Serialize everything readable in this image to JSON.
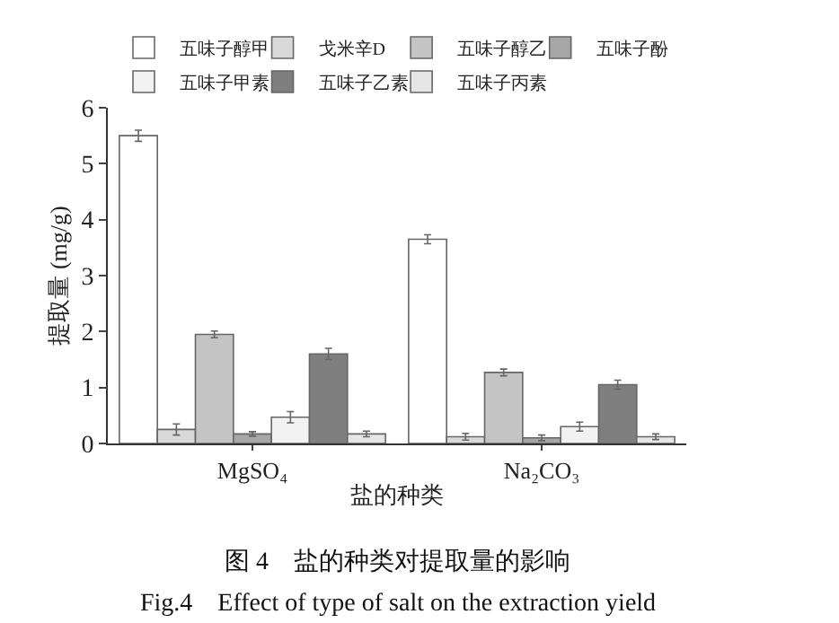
{
  "chart_data": {
    "type": "bar",
    "xlabel": "盐的种类",
    "ylabel": "提取量 (mg/g)",
    "categories": [
      "MgSO₄",
      "Na₂CO₃"
    ],
    "ylim": [
      0,
      6
    ],
    "yticks": [
      0,
      1,
      2,
      3,
      4,
      5,
      6
    ],
    "legend": "top",
    "series": [
      {
        "name": "五味子醇甲",
        "color": "#ffffff",
        "values": [
          5.5,
          3.65
        ],
        "errors": [
          0.1,
          0.08
        ]
      },
      {
        "name": "戈米辛D",
        "color": "#d9d9d9",
        "values": [
          0.25,
          0.12
        ],
        "errors": [
          0.1,
          0.06
        ]
      },
      {
        "name": "五味子醇乙",
        "color": "#c4c4c4",
        "values": [
          1.95,
          1.27
        ],
        "errors": [
          0.06,
          0.06
        ]
      },
      {
        "name": "五味子酚",
        "color": "#a6a6a6",
        "values": [
          0.17,
          0.1
        ],
        "errors": [
          0.04,
          0.05
        ]
      },
      {
        "name": "五味子甲素",
        "color": "#f2f2f2",
        "values": [
          0.47,
          0.3
        ],
        "errors": [
          0.1,
          0.08
        ]
      },
      {
        "name": "五味子乙素",
        "color": "#7f7f7f",
        "values": [
          1.6,
          1.05
        ],
        "errors": [
          0.1,
          0.08
        ]
      },
      {
        "name": "五味子丙素",
        "color": "#e6e6e6",
        "values": [
          0.17,
          0.12
        ],
        "errors": [
          0.05,
          0.05
        ]
      }
    ],
    "annotations": [
      "图 4　盐的种类对提取量的影响",
      "Fig.4　Effect of type of salt on the extraction yield"
    ]
  }
}
